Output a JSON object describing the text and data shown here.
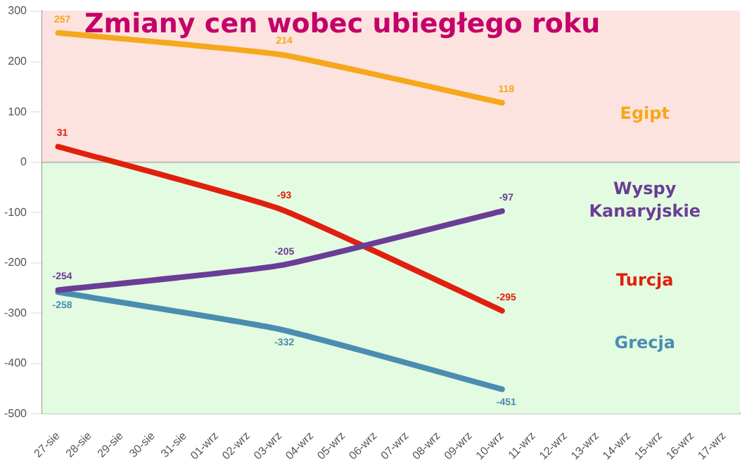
{
  "chart_data": {
    "type": "line",
    "title": "Zmiany cen wobec ubiegłego roku",
    "categories": [
      "27-sie",
      "28-sie",
      "29-sie",
      "30-sie",
      "31-sie",
      "01-wrz",
      "02-wrz",
      "03-wrz",
      "04-wrz",
      "05-wrz",
      "06-wrz",
      "07-wrz",
      "08-wrz",
      "09-wrz",
      "10-wrz",
      "11-wrz",
      "12-wrz",
      "13-wrz",
      "14-wrz",
      "15-wrz",
      "16-wrz",
      "17-wrz"
    ],
    "series": [
      {
        "name": "Egipt",
        "color": "#f5a81c",
        "values": [
          257,
          null,
          null,
          null,
          null,
          null,
          null,
          214,
          null,
          null,
          null,
          null,
          null,
          null,
          118,
          null,
          null,
          null,
          null,
          null,
          null,
          null
        ]
      },
      {
        "name": "Wyspy Kanaryjskie",
        "color": "#6a3d96",
        "values": [
          -254,
          null,
          null,
          null,
          null,
          null,
          null,
          -205,
          null,
          null,
          null,
          null,
          null,
          null,
          -97,
          null,
          null,
          null,
          null,
          null,
          null,
          null
        ]
      },
      {
        "name": "Turcja",
        "color": "#e0200e",
        "values": [
          31,
          null,
          null,
          null,
          null,
          null,
          null,
          -93,
          null,
          null,
          null,
          null,
          null,
          null,
          -295,
          null,
          null,
          null,
          null,
          null,
          null,
          null
        ]
      },
      {
        "name": "Grecja",
        "color": "#4a8db0",
        "values": [
          -258,
          null,
          null,
          null,
          null,
          null,
          null,
          -332,
          null,
          null,
          null,
          null,
          null,
          null,
          -451,
          null,
          null,
          null,
          null,
          null,
          null,
          null
        ]
      }
    ],
    "ylim": [
      -500,
      300
    ],
    "yticks": [
      -500,
      -400,
      -300,
      -200,
      -100,
      0,
      100,
      200,
      300
    ],
    "bands": [
      {
        "axis": "y",
        "from": 0,
        "to": 300,
        "color": "#fde3df"
      },
      {
        "axis": "y",
        "from": -500,
        "to": 0,
        "color": "#e3fbe0"
      }
    ],
    "grid": "y",
    "legend": false,
    "marker": "none",
    "line_style": "solid",
    "data_labels": true
  }
}
